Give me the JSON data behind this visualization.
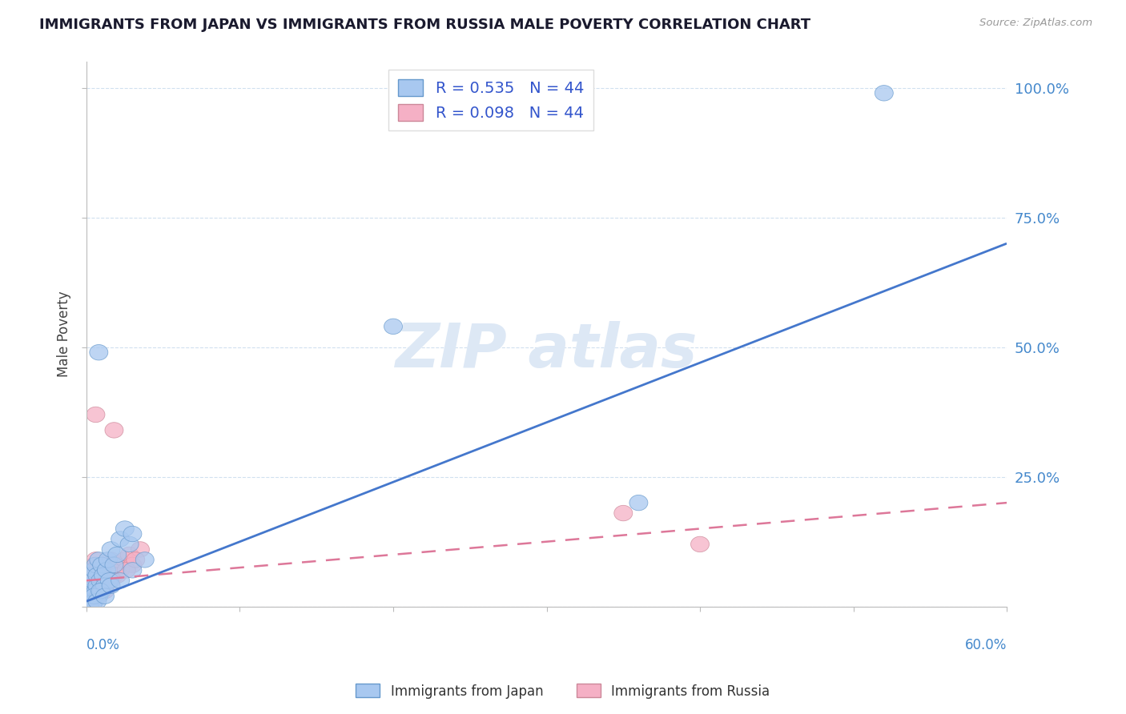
{
  "title": "IMMIGRANTS FROM JAPAN VS IMMIGRANTS FROM RUSSIA MALE POVERTY CORRELATION CHART",
  "source": "Source: ZipAtlas.com",
  "ylabel": "Male Poverty",
  "legend_japan_R": "R = 0.535",
  "legend_japan_N": "N = 44",
  "legend_russia_R": "R = 0.098",
  "legend_russia_N": "N = 44",
  "legend_japan_label": "Immigrants from Japan",
  "legend_russia_label": "Immigrants from Russia",
  "japan_color": "#a8c8f0",
  "japan_edge_color": "#6699cc",
  "russia_color": "#f5b0c5",
  "russia_edge_color": "#cc8899",
  "japan_line_color": "#4477cc",
  "russia_line_color": "#dd7799",
  "legend_text_color": "#3355cc",
  "watermark_color": "#dde8f5",
  "axis_label_color": "#4488cc",
  "japan_x": [
    0.001,
    0.002,
    0.002,
    0.003,
    0.003,
    0.004,
    0.004,
    0.005,
    0.005,
    0.006,
    0.006,
    0.007,
    0.007,
    0.008,
    0.008,
    0.009,
    0.01,
    0.01,
    0.011,
    0.012,
    0.013,
    0.014,
    0.015,
    0.016,
    0.018,
    0.02,
    0.022,
    0.025,
    0.028,
    0.03,
    0.002,
    0.004,
    0.005,
    0.007,
    0.009,
    0.012,
    0.016,
    0.022,
    0.03,
    0.038,
    0.008,
    0.2,
    0.36,
    0.52
  ],
  "japan_y": [
    0.02,
    0.01,
    0.04,
    0.02,
    0.06,
    0.03,
    0.05,
    0.01,
    0.07,
    0.03,
    0.08,
    0.04,
    0.06,
    0.02,
    0.09,
    0.05,
    0.03,
    0.08,
    0.06,
    0.04,
    0.07,
    0.09,
    0.05,
    0.11,
    0.08,
    0.1,
    0.13,
    0.15,
    0.12,
    0.14,
    0.0,
    0.0,
    0.02,
    0.01,
    0.03,
    0.02,
    0.04,
    0.05,
    0.07,
    0.09,
    0.49,
    0.54,
    0.2,
    0.99
  ],
  "russia_x": [
    0.001,
    0.002,
    0.002,
    0.003,
    0.003,
    0.004,
    0.004,
    0.005,
    0.005,
    0.006,
    0.006,
    0.007,
    0.007,
    0.008,
    0.009,
    0.01,
    0.01,
    0.011,
    0.012,
    0.013,
    0.014,
    0.015,
    0.016,
    0.018,
    0.02,
    0.022,
    0.025,
    0.028,
    0.03,
    0.035,
    0.002,
    0.003,
    0.005,
    0.007,
    0.009,
    0.012,
    0.016,
    0.02,
    0.026,
    0.032,
    0.006,
    0.018,
    0.35,
    0.4
  ],
  "russia_y": [
    0.03,
    0.05,
    0.02,
    0.07,
    0.04,
    0.06,
    0.03,
    0.08,
    0.02,
    0.05,
    0.09,
    0.04,
    0.07,
    0.03,
    0.06,
    0.04,
    0.08,
    0.05,
    0.06,
    0.07,
    0.08,
    0.05,
    0.09,
    0.06,
    0.08,
    0.07,
    0.09,
    0.1,
    0.08,
    0.11,
    0.0,
    0.01,
    0.03,
    0.02,
    0.04,
    0.03,
    0.05,
    0.06,
    0.07,
    0.09,
    0.37,
    0.34,
    0.18,
    0.12
  ],
  "japan_line_x": [
    0.0,
    0.6
  ],
  "japan_line_y": [
    0.01,
    0.7
  ],
  "russia_line_x": [
    0.0,
    0.6
  ],
  "russia_line_y": [
    0.05,
    0.2
  ],
  "xlim": [
    0.0,
    0.6
  ],
  "ylim": [
    0.0,
    1.05
  ],
  "xticks": [
    0.0,
    0.1,
    0.2,
    0.3,
    0.4,
    0.5,
    0.6
  ],
  "yticks": [
    0.0,
    0.25,
    0.5,
    0.75,
    1.0
  ],
  "right_ytick_labels": [
    "",
    "25.0%",
    "50.0%",
    "75.0%",
    "100.0%"
  ]
}
